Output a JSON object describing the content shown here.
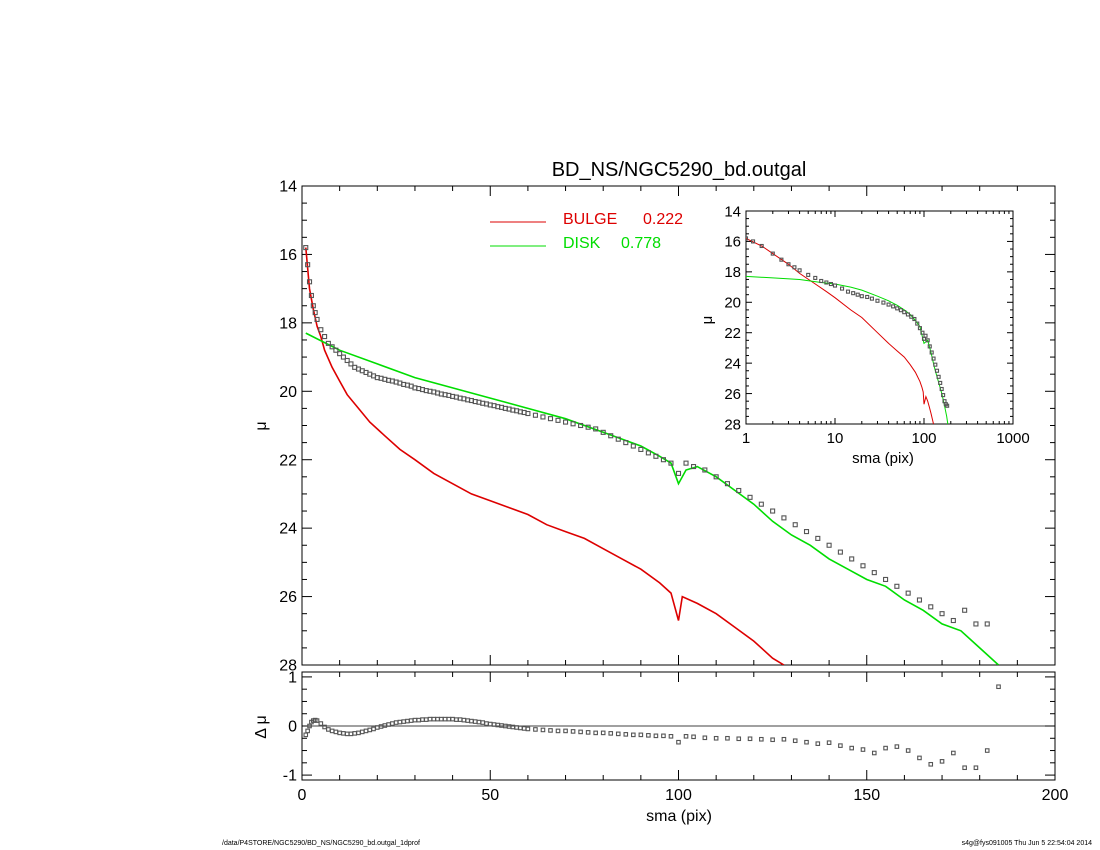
{
  "footer": {
    "path": "/data/P4STORE/NGC5290/BD_NS/NGC5290_bd.outgal_1dprof",
    "stamp": "s4g@fys091005  Thu Jun  5 22:54:04 2014"
  },
  "chart_data": [
    {
      "id": "main",
      "type": "line",
      "title": "BD_NS/NGC5290_bd.outgal",
      "xlabel": "",
      "ylabel": "μ",
      "xlim": [
        0,
        200
      ],
      "ylim": [
        28,
        14
      ],
      "yticks": [
        14,
        16,
        18,
        20,
        22,
        24,
        26,
        28
      ],
      "xticks": [
        0,
        50,
        100,
        150,
        200
      ],
      "legend_position": "top-center",
      "series": [
        {
          "name": "BULGE",
          "value_label": "0.222",
          "color": "#dd0000",
          "style": "line",
          "x": [
            1.0,
            2,
            3,
            4,
            5,
            6,
            8,
            10,
            12,
            15,
            18,
            22,
            26,
            30,
            35,
            40,
            45,
            50,
            55,
            60,
            65,
            70,
            75,
            80,
            85,
            90,
            95,
            98,
            100,
            101,
            105,
            110,
            115,
            120,
            125,
            128
          ],
          "y": [
            15.8,
            17.0,
            17.6,
            18.1,
            18.4,
            18.8,
            19.3,
            19.7,
            20.1,
            20.5,
            20.9,
            21.3,
            21.7,
            22.0,
            22.4,
            22.7,
            23.0,
            23.2,
            23.4,
            23.6,
            23.9,
            24.1,
            24.3,
            24.6,
            24.9,
            25.2,
            25.6,
            25.9,
            26.7,
            26.0,
            26.2,
            26.5,
            26.9,
            27.3,
            27.8,
            28.0
          ]
        },
        {
          "name": "DISK",
          "value_label": "0.778",
          "color": "#00dd00",
          "style": "line",
          "x": [
            1,
            10,
            20,
            30,
            40,
            50,
            60,
            70,
            80,
            90,
            95,
            98,
            100,
            102,
            105,
            110,
            115,
            120,
            125,
            130,
            135,
            140,
            145,
            150,
            155,
            160,
            165,
            170,
            175,
            180,
            185
          ],
          "y": [
            18.3,
            18.8,
            19.2,
            19.6,
            19.9,
            20.2,
            20.5,
            20.8,
            21.2,
            21.6,
            21.9,
            22.1,
            22.7,
            22.3,
            22.2,
            22.5,
            22.9,
            23.3,
            23.8,
            24.2,
            24.5,
            24.9,
            25.2,
            25.5,
            25.7,
            26.1,
            26.4,
            26.8,
            27.0,
            27.5,
            28.0
          ]
        },
        {
          "name": "",
          "color": "#555555",
          "style": "markers",
          "x": [
            1.0,
            1.5,
            2,
            2.5,
            3,
            3.5,
            4,
            5,
            6,
            7,
            8,
            9,
            10,
            11,
            12,
            13,
            14,
            15,
            16,
            17,
            18,
            19,
            20,
            21,
            22,
            23,
            24,
            25,
            26,
            27,
            28,
            29,
            30,
            31,
            32,
            33,
            34,
            35,
            36,
            37,
            38,
            39,
            40,
            41,
            42,
            43,
            44,
            45,
            46,
            47,
            48,
            49,
            50,
            51,
            52,
            53,
            54,
            55,
            56,
            57,
            58,
            59,
            60,
            62,
            64,
            66,
            68,
            70,
            72,
            74,
            76,
            78,
            80,
            82,
            84,
            86,
            88,
            90,
            92,
            94,
            96,
            98,
            100,
            102,
            104,
            107,
            110,
            113,
            116,
            119,
            122,
            125,
            128,
            131,
            134,
            137,
            140,
            143,
            146,
            149,
            152,
            155,
            158,
            161,
            164,
            167,
            170,
            173,
            176,
            179,
            182
          ],
          "y": [
            15.8,
            16.3,
            16.8,
            17.2,
            17.5,
            17.7,
            17.9,
            18.2,
            18.4,
            18.6,
            18.7,
            18.8,
            18.9,
            19.0,
            19.1,
            19.2,
            19.3,
            19.35,
            19.4,
            19.45,
            19.5,
            19.55,
            19.6,
            19.62,
            19.65,
            19.68,
            19.7,
            19.73,
            19.76,
            19.8,
            19.82,
            19.85,
            19.9,
            19.92,
            19.95,
            19.98,
            20.0,
            20.02,
            20.05,
            20.08,
            20.1,
            20.12,
            20.15,
            20.17,
            20.2,
            20.22,
            20.25,
            20.27,
            20.3,
            20.32,
            20.35,
            20.37,
            20.4,
            20.42,
            20.45,
            20.47,
            20.5,
            20.52,
            20.55,
            20.57,
            20.6,
            20.62,
            20.65,
            20.7,
            20.75,
            20.8,
            20.85,
            20.9,
            20.95,
            21.0,
            21.05,
            21.1,
            21.2,
            21.3,
            21.4,
            21.5,
            21.6,
            21.7,
            21.8,
            21.9,
            22.0,
            22.1,
            22.4,
            22.1,
            22.2,
            22.3,
            22.5,
            22.7,
            22.9,
            23.1,
            23.3,
            23.5,
            23.7,
            23.9,
            24.1,
            24.3,
            24.5,
            24.7,
            24.9,
            25.1,
            25.3,
            25.5,
            25.7,
            25.9,
            26.1,
            26.3,
            26.5,
            26.7,
            26.4,
            26.8,
            26.8
          ]
        }
      ]
    },
    {
      "id": "inset",
      "type": "line",
      "title": "",
      "xlabel": "sma (pix)",
      "ylabel": "μ",
      "xscale": "log",
      "xlim": [
        1,
        1000
      ],
      "ylim": [
        28,
        14
      ],
      "yticks": [
        14,
        16,
        18,
        20,
        22,
        24,
        26,
        28
      ],
      "xticks": [
        1,
        10,
        100,
        1000
      ],
      "series": [
        {
          "name": "BULGE",
          "color": "#dd0000",
          "style": "line",
          "x": [
            1,
            1.5,
            2,
            3,
            4,
            6,
            8,
            10,
            15,
            20,
            30,
            40,
            50,
            60,
            70,
            80,
            90,
            95,
            98,
            100,
            105,
            110,
            115,
            120,
            128
          ],
          "y": [
            15.8,
            16.3,
            16.8,
            17.5,
            18.1,
            18.8,
            19.3,
            19.7,
            20.5,
            21.0,
            22.0,
            22.7,
            23.2,
            23.6,
            24.1,
            24.6,
            25.2,
            25.6,
            25.9,
            26.7,
            26.2,
            26.5,
            26.9,
            27.3,
            28.0
          ]
        },
        {
          "name": "DISK",
          "color": "#00dd00",
          "style": "line",
          "x": [
            1,
            2,
            4,
            7,
            10,
            15,
            20,
            30,
            40,
            50,
            60,
            70,
            80,
            90,
            100,
            110,
            120,
            130,
            140,
            150,
            160,
            170,
            180,
            185
          ],
          "y": [
            18.3,
            18.4,
            18.5,
            18.7,
            18.8,
            19.0,
            19.2,
            19.6,
            19.9,
            20.2,
            20.5,
            20.8,
            21.2,
            21.6,
            22.7,
            22.5,
            23.3,
            24.2,
            24.9,
            25.5,
            26.1,
            26.8,
            27.5,
            28.0
          ]
        },
        {
          "name": "",
          "color": "#555555",
          "style": "markers",
          "x": [
            1.0,
            1.2,
            1.5,
            2,
            2.5,
            3,
            3.5,
            4,
            5,
            6,
            7,
            8,
            9,
            10,
            12,
            14,
            16,
            18,
            20,
            23,
            26,
            30,
            35,
            40,
            45,
            50,
            55,
            60,
            66,
            72,
            78,
            84,
            90,
            96,
            100,
            104,
            110,
            116,
            122,
            128,
            134,
            140,
            146,
            152,
            158,
            164,
            170,
            176,
            182
          ],
          "y": [
            15.8,
            16.0,
            16.3,
            16.8,
            17.2,
            17.5,
            17.7,
            17.9,
            18.2,
            18.4,
            18.6,
            18.7,
            18.8,
            18.9,
            19.1,
            19.3,
            19.4,
            19.5,
            19.6,
            19.65,
            19.76,
            19.9,
            20.02,
            20.15,
            20.27,
            20.4,
            20.52,
            20.65,
            20.8,
            20.95,
            21.1,
            21.4,
            21.7,
            22.0,
            22.4,
            22.2,
            22.5,
            22.9,
            23.3,
            23.7,
            24.1,
            24.5,
            24.9,
            25.3,
            25.7,
            26.1,
            26.5,
            26.7,
            26.8
          ]
        }
      ]
    },
    {
      "id": "residual",
      "type": "scatter",
      "title": "",
      "xlabel": "sma (pix)",
      "ylabel": "Δ μ",
      "xlim": [
        0,
        200
      ],
      "ylim": [
        -1.1,
        1.1
      ],
      "yticks": [
        1,
        0,
        -1
      ],
      "xticks": [
        0,
        50,
        100,
        150,
        200
      ],
      "series": [
        {
          "name": "",
          "color": "#555555",
          "style": "markers",
          "x": [
            1.0,
            1.5,
            2,
            2.5,
            3,
            3.5,
            4,
            5,
            6,
            7,
            8,
            9,
            10,
            11,
            12,
            13,
            14,
            15,
            16,
            17,
            18,
            19,
            20,
            21,
            22,
            23,
            24,
            25,
            26,
            27,
            28,
            29,
            30,
            31,
            32,
            33,
            34,
            35,
            36,
            37,
            38,
            39,
            40,
            41,
            42,
            43,
            44,
            45,
            46,
            47,
            48,
            49,
            50,
            51,
            52,
            53,
            54,
            55,
            56,
            57,
            58,
            59,
            60,
            62,
            64,
            66,
            68,
            70,
            72,
            74,
            76,
            78,
            80,
            82,
            84,
            86,
            88,
            90,
            92,
            94,
            96,
            98,
            100,
            102,
            104,
            107,
            110,
            113,
            116,
            119,
            122,
            125,
            128,
            131,
            134,
            137,
            140,
            143,
            146,
            149,
            152,
            155,
            158,
            161,
            164,
            167,
            170,
            173,
            176,
            179,
            182,
            185
          ],
          "y": [
            -0.18,
            -0.1,
            0.0,
            0.08,
            0.11,
            0.12,
            0.11,
            0.05,
            -0.02,
            -0.07,
            -0.1,
            -0.12,
            -0.14,
            -0.15,
            -0.16,
            -0.16,
            -0.15,
            -0.14,
            -0.12,
            -0.1,
            -0.08,
            -0.06,
            -0.03,
            -0.01,
            0.01,
            0.03,
            0.05,
            0.07,
            0.08,
            0.09,
            0.1,
            0.11,
            0.12,
            0.12,
            0.13,
            0.13,
            0.14,
            0.14,
            0.14,
            0.14,
            0.14,
            0.14,
            0.14,
            0.13,
            0.13,
            0.12,
            0.11,
            0.1,
            0.09,
            0.08,
            0.07,
            0.05,
            0.04,
            0.03,
            0.02,
            0.01,
            0.0,
            -0.01,
            -0.02,
            -0.03,
            -0.04,
            -0.05,
            -0.06,
            -0.07,
            -0.08,
            -0.09,
            -0.1,
            -0.1,
            -0.11,
            -0.12,
            -0.13,
            -0.14,
            -0.14,
            -0.15,
            -0.16,
            -0.17,
            -0.18,
            -0.18,
            -0.19,
            -0.2,
            -0.2,
            -0.21,
            -0.33,
            -0.21,
            -0.22,
            -0.24,
            -0.25,
            -0.25,
            -0.26,
            -0.26,
            -0.27,
            -0.28,
            -0.27,
            -0.3,
            -0.33,
            -0.36,
            -0.34,
            -0.4,
            -0.45,
            -0.48,
            -0.55,
            -0.45,
            -0.42,
            -0.5,
            -0.65,
            -0.78,
            -0.72,
            -0.55,
            -0.85,
            -0.85,
            -0.5,
            0.8
          ]
        }
      ]
    }
  ]
}
